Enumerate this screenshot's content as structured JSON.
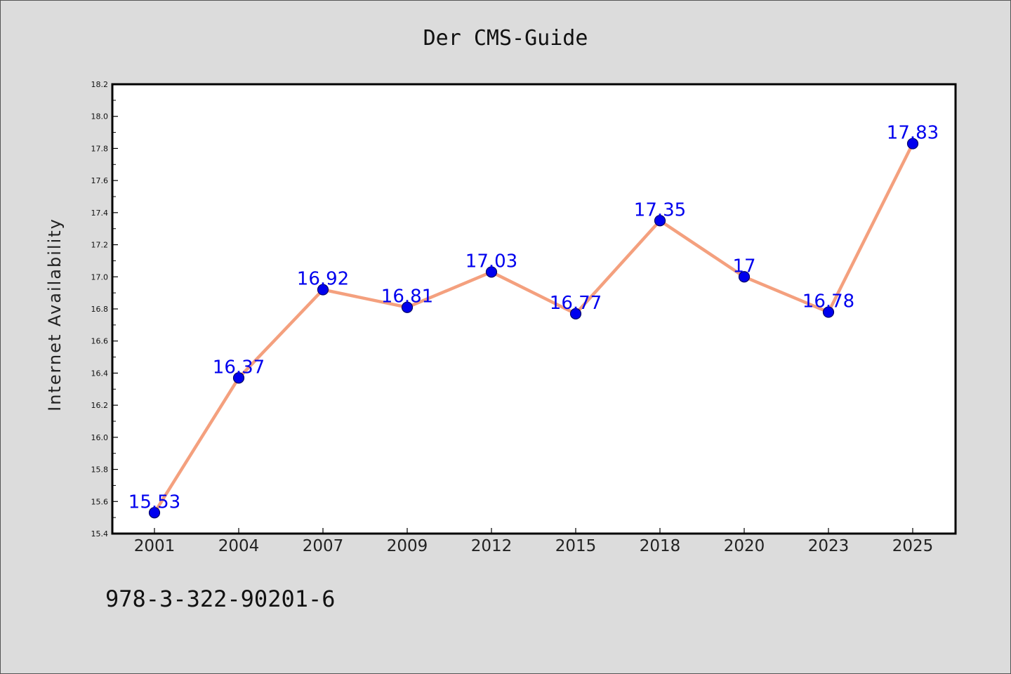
{
  "chart_data": {
    "type": "line",
    "title": "Der CMS-Guide",
    "xlabel": "",
    "ylabel": "Internet Availability",
    "categories": [
      "2001",
      "2004",
      "2007",
      "2009",
      "2012",
      "2015",
      "2018",
      "2020",
      "2023",
      "2025"
    ],
    "values": [
      15.53,
      16.37,
      16.92,
      16.81,
      17.03,
      16.77,
      17.35,
      17,
      16.78,
      17.83
    ],
    "data_labels": [
      "15.53",
      "16.37",
      "16.92",
      "16.81",
      "17.03",
      "16.77",
      "17.35",
      "17",
      "16.78",
      "17.83"
    ],
    "ylim": [
      15.4,
      18.2
    ],
    "y_ticks": [
      "15.4",
      "15.6",
      "15.8",
      "16.0",
      "16.2",
      "16.4",
      "16.6",
      "16.8",
      "17.0",
      "17.2",
      "17.4",
      "17.6",
      "17.8",
      "18.0",
      "18.2"
    ],
    "grid": false,
    "legend": "none",
    "colors": {
      "line": "#f4a07e",
      "marker_fill": "#0000ee",
      "marker_edge": "#000066",
      "label": "#0000ee",
      "plot_background": "#ffffff",
      "page_background": "#dcdcdc"
    }
  },
  "footer": {
    "isbn": "978-3-322-90201-6"
  }
}
